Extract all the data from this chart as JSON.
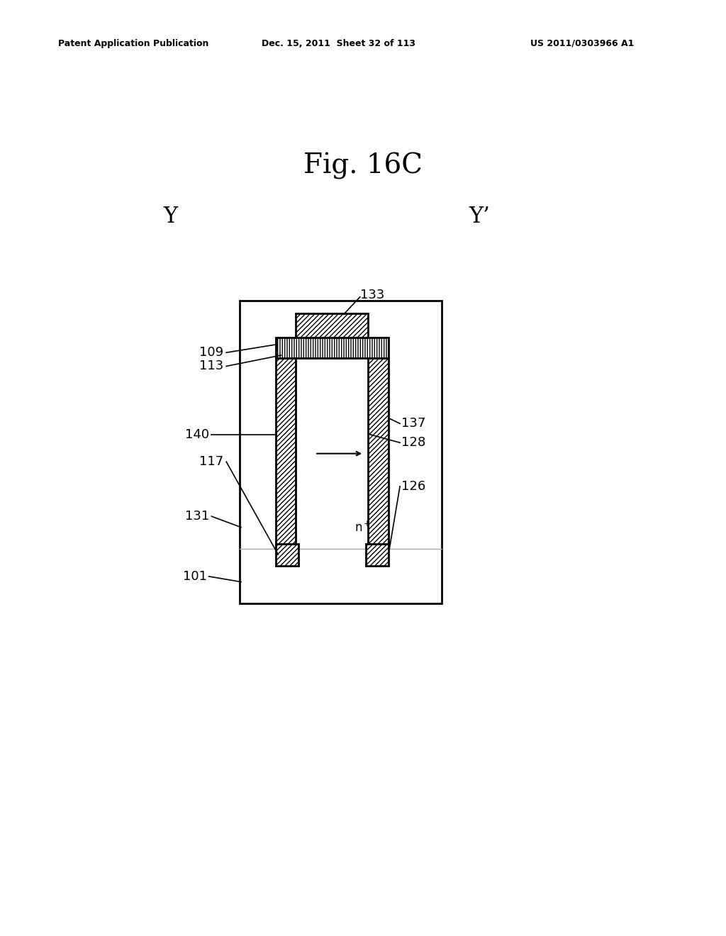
{
  "header_left": "Patent Application Publication",
  "header_center": "Dec. 15, 2011  Sheet 32 of 113",
  "header_right": "US 2011/0303966 A1",
  "fig_label": "Fig. 16C",
  "Y_label": "Y",
  "Yprime_label": "Y’",
  "background_color": "#ffffff"
}
